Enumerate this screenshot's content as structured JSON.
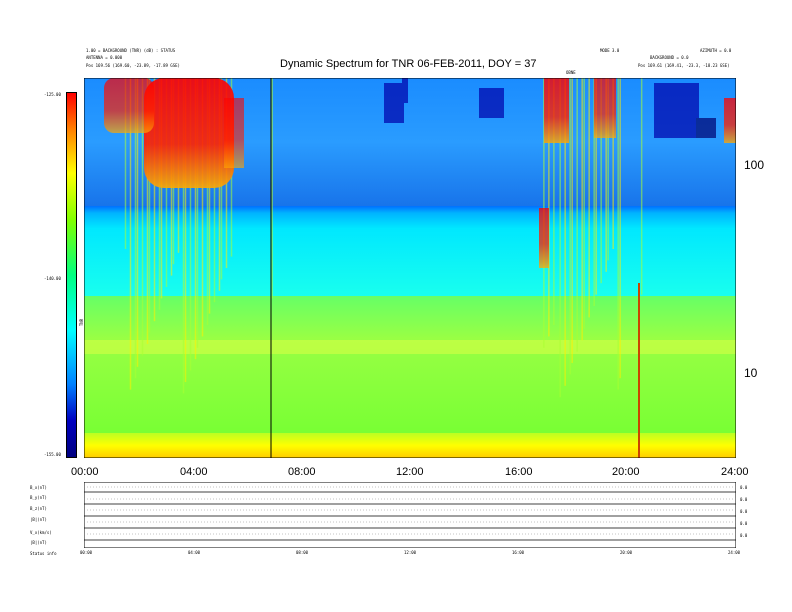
{
  "header": {
    "title": "Dynamic Spectrum for TNR 06-FEB-2011, DOY = 37",
    "left_lines": [
      "1.00 = BACKGROUND (TNR) (dB) : STATUS",
      "ANTENNA = 0.000",
      "Pos  169.56 (169.60, -23.89, -17.89 GSE)"
    ],
    "right_lines": [
      "AZIMUTH = 0.0",
      "BACKGROUND = 0.0",
      "Pos  169.61 (169.41, -23.3, -18.23 GSE)"
    ],
    "mid_label_a": "MODE 3.0",
    "mid_label_b": "OBNE"
  },
  "colorbar": {
    "label": "TNR",
    "tick_labels": [
      "-125.00",
      "-140.00",
      "-155.00"
    ],
    "colors": [
      "#ff0000",
      "#ff8000",
      "#ffff00",
      "#80ff00",
      "#00ff80",
      "#00ffff",
      "#0080ff",
      "#0000c0",
      "#000080"
    ]
  },
  "panel_labels": [
    "B_x(nT)",
    "B_y(nT)",
    "B_z(nT)",
    "|B|(nT)",
    "V_x(km/s)",
    "|B|(nT)"
  ],
  "bottom_label": "Status  info",
  "chart_data": {
    "type": "heatmap",
    "title": "Dynamic Spectrum for TNR 06-FEB-2011, DOY = 37",
    "x_tick_labels": [
      "00:00",
      "04:00",
      "08:00",
      "12:00",
      "16:00",
      "20:00",
      "24:00"
    ],
    "x_range_hours": [
      0,
      24
    ],
    "y_scale": "log",
    "y_tick_labels": [
      "100",
      "10"
    ],
    "y_range": [
      4,
      220
    ],
    "color_range_db": [
      -155,
      -125
    ],
    "bands": [
      {
        "label": "low-frequency yellow background",
        "freq_range": [
          4,
          6
        ],
        "level_db": -128
      },
      {
        "label": "green band",
        "freq_range": [
          6,
          20
        ],
        "level_db": -137
      },
      {
        "label": "cyan band",
        "freq_range": [
          20,
          60
        ],
        "level_db": -143
      },
      {
        "label": "blue high-frequency band",
        "freq_range": [
          60,
          220
        ],
        "level_db": -150
      }
    ],
    "bursts": [
      {
        "start_hour": 1.5,
        "end_hour": 5.5,
        "intensity": "high"
      },
      {
        "start_hour": 6.9,
        "end_hour": 6.9,
        "intensity": "vertical line"
      },
      {
        "start_hour": 16.9,
        "end_hour": 17.3,
        "intensity": "medium"
      },
      {
        "start_hour": 17.5,
        "end_hour": 19.8,
        "intensity": "medium"
      },
      {
        "start_hour": 20.5,
        "end_hour": 20.5,
        "intensity": "spike"
      }
    ]
  },
  "small_panels": {
    "x_tick_labels": [
      "00:00",
      "04:00",
      "08:00",
      "12:00",
      "16:00",
      "20:00",
      "24:00"
    ],
    "right_labels": [
      "0.0",
      "0.0",
      "0.0",
      "0.0",
      "0.0"
    ]
  }
}
